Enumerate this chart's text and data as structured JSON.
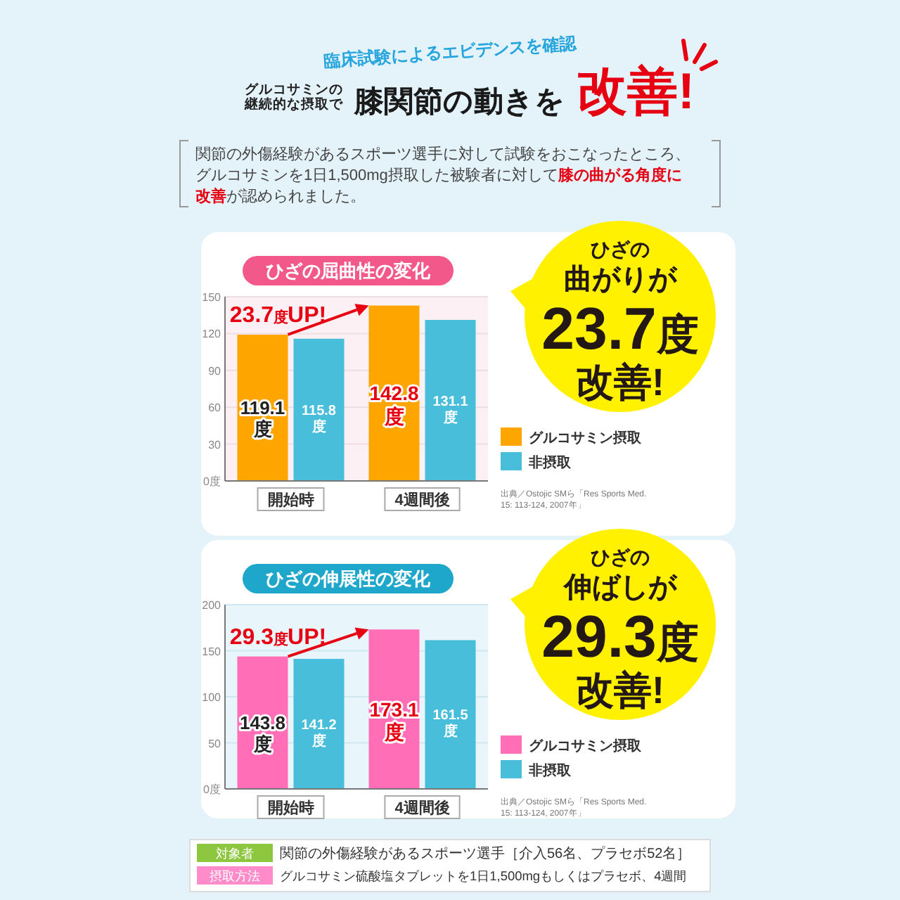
{
  "chart_data": [
    {
      "type": "bar",
      "title": "ひざの屈曲性の変化",
      "categories": [
        "開始時",
        "4週間後"
      ],
      "series": [
        {
          "name": "グルコサミン摂取",
          "color": "#ffa500",
          "values": [
            119.1,
            142.8
          ],
          "value_labels": [
            "119.1度",
            "142.8度"
          ]
        },
        {
          "name": "非摂取",
          "color": "#48bedb",
          "values": [
            115.8,
            131.1
          ],
          "value_labels": [
            "115.8度",
            "131.1度"
          ]
        }
      ],
      "ylim": [
        0,
        150
      ],
      "yticks": [
        {
          "value": 0,
          "label": "0度"
        },
        30,
        60,
        90,
        120,
        150
      ],
      "grid": "y",
      "legend": "right",
      "annotations": [
        "臨床試験によるエビデンスを確認",
        "グルコサミンの継続的な摂取で",
        "膝関節の動きを",
        "改善!",
        "関節の外傷経験があるスポーツ選手に対して試験をおこなったところ、",
        "グルコサミンを1日1,500mg摂取した被験者に対して",
        "膝の曲がる角度に",
        "改善",
        "が認められました。",
        "23.7度UP!",
        "ひざの",
        "曲がりが",
        "23.7度",
        "改善!",
        "出典／Ostojic SMら「Res Sports Med. 15: 113-124, 2007年」"
      ]
    },
    {
      "type": "bar",
      "title": "ひざの伸展性の変化",
      "categories": [
        "開始時",
        "4週間後"
      ],
      "series": [
        {
          "name": "グルコサミン摂取",
          "color": "#ff6eb6",
          "values": [
            143.8,
            173.1
          ],
          "value_labels": [
            "143.8度",
            "173.1度"
          ]
        },
        {
          "name": "非摂取",
          "color": "#48bedb",
          "values": [
            141.2,
            161.5
          ],
          "value_labels": [
            "141.2度",
            "161.5度"
          ]
        }
      ],
      "ylim": [
        0,
        200
      ],
      "yticks": [
        {
          "value": 0,
          "label": "0度"
        },
        50,
        100,
        150,
        200
      ],
      "grid": "y",
      "legend": "right",
      "annotations": [
        "29.3度UP!",
        "ひざの",
        "伸ばしが",
        "29.3度",
        "改善!",
        "出典／Ostojic SMら「Res Sports Med. 15: 113-124, 2007年」",
        "対象者",
        "関節の外傷経験があるスポーツ選手［介入56名、プラセボ52名］",
        "摂取方法",
        "グルコサミン硫酸塩タブレットを1日1,500mgもしくはプラセボ、4週間"
      ]
    }
  ]
}
